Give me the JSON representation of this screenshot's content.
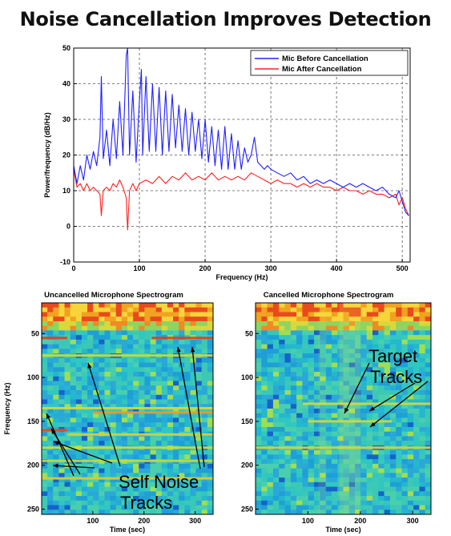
{
  "title": "Noise Cancellation Improves Detection",
  "chart_data": [
    {
      "type": "line",
      "title": "",
      "xlabel": "Frequency (Hz)",
      "ylabel": "Power/frequency (dB/Hz)",
      "xlim": [
        0,
        512
      ],
      "ylim": [
        -10,
        50
      ],
      "xticks": [
        0,
        100,
        200,
        300,
        400,
        500
      ],
      "yticks": [
        -10,
        0,
        10,
        20,
        30,
        40,
        50
      ],
      "grid": true,
      "legend_position": "top-right",
      "series": [
        {
          "name": "Mic Before Cancellation",
          "color": "#2020ff",
          "x": [
            0,
            5,
            10,
            15,
            20,
            25,
            30,
            35,
            40,
            42,
            45,
            50,
            55,
            60,
            65,
            70,
            75,
            80,
            82,
            85,
            90,
            95,
            100,
            103,
            105,
            110,
            115,
            120,
            125,
            130,
            135,
            140,
            145,
            150,
            155,
            160,
            165,
            170,
            175,
            180,
            185,
            190,
            195,
            200,
            205,
            210,
            215,
            220,
            225,
            230,
            235,
            240,
            245,
            250,
            255,
            260,
            265,
            270,
            275,
            280,
            285,
            290,
            295,
            300,
            310,
            320,
            330,
            340,
            350,
            360,
            370,
            380,
            390,
            400,
            410,
            420,
            430,
            440,
            450,
            460,
            470,
            480,
            490,
            495,
            500,
            505,
            510
          ],
          "y": [
            17,
            12,
            17,
            13,
            20,
            16,
            21,
            17,
            25,
            42,
            19,
            27,
            17,
            30,
            19,
            35,
            20,
            48,
            50,
            20,
            38,
            18,
            35,
            44,
            20,
            42,
            21,
            40,
            21,
            39,
            20,
            38,
            21,
            37,
            22,
            34,
            21,
            33,
            20,
            32,
            21,
            30,
            19,
            30,
            18,
            28,
            17,
            27,
            16,
            28,
            16,
            26,
            16,
            24,
            16,
            22,
            18,
            20,
            25,
            18,
            17,
            16,
            17,
            16,
            15,
            14,
            15,
            13,
            14,
            12,
            13,
            12,
            13,
            12,
            11,
            12,
            11,
            12,
            11,
            10,
            11,
            9,
            8,
            10,
            7,
            4,
            3
          ]
        },
        {
          "name": "Mic After Cancellation",
          "color": "#ff2020",
          "x": [
            0,
            5,
            10,
            15,
            20,
            25,
            30,
            35,
            40,
            42,
            45,
            50,
            55,
            60,
            65,
            70,
            75,
            80,
            82,
            85,
            90,
            95,
            100,
            110,
            120,
            130,
            140,
            150,
            160,
            170,
            180,
            190,
            200,
            210,
            220,
            230,
            240,
            250,
            260,
            270,
            280,
            290,
            300,
            310,
            320,
            330,
            340,
            350,
            360,
            370,
            380,
            390,
            400,
            410,
            420,
            430,
            440,
            450,
            460,
            470,
            480,
            490,
            495,
            500,
            505,
            510
          ],
          "y": [
            16,
            11,
            12,
            10,
            12,
            10,
            11,
            10,
            9,
            3,
            10,
            11,
            10,
            12,
            11,
            13,
            11,
            8,
            -1,
            10,
            12,
            10,
            12,
            13,
            12,
            14,
            12,
            14,
            13,
            15,
            13,
            14,
            13,
            15,
            13,
            14,
            13,
            14,
            13,
            15,
            14,
            13,
            12,
            13,
            12,
            12,
            11,
            12,
            11,
            12,
            11,
            11,
            10,
            11,
            10,
            10,
            9,
            10,
            9,
            9,
            8,
            9,
            6,
            8,
            5,
            3
          ]
        }
      ]
    },
    {
      "type": "heatmap",
      "title": "Uncancelled Microphone Spectrogram",
      "xlabel": "Time (sec)",
      "ylabel": "Frequency (Hz)",
      "xticks": [
        100,
        200,
        300
      ],
      "yticks": [
        50,
        100,
        150,
        200,
        250
      ],
      "tracks_hz": [
        55,
        75,
        135,
        140,
        160,
        165,
        180,
        195,
        215
      ]
    },
    {
      "type": "heatmap",
      "title": "Cancelled Microphone Spectrogram",
      "xlabel": "Time (sec)",
      "ylabel": "Frequency (Hz)",
      "xticks": [
        100,
        200,
        300
      ],
      "yticks": [
        50,
        100,
        150,
        200,
        250
      ],
      "tracks_hz": [
        130,
        150,
        180
      ]
    }
  ],
  "annotations": {
    "self_noise_line1": "Self Noise",
    "self_noise_line2": "Tracks",
    "target_line1": "Target",
    "target_line2": "Tracks"
  }
}
